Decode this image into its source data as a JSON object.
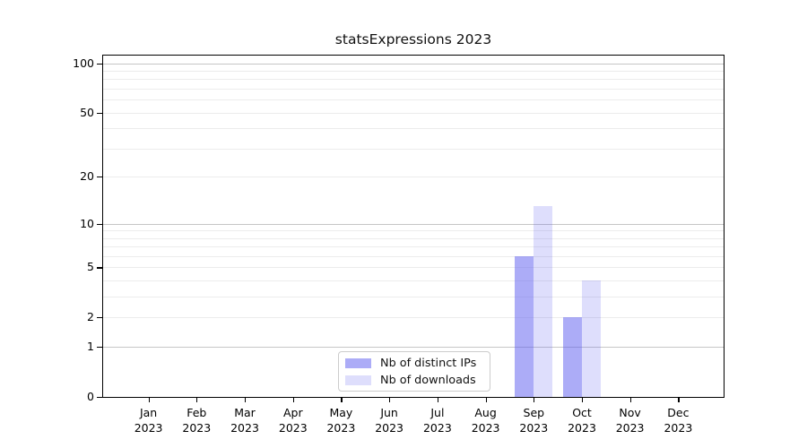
{
  "chart_data": {
    "type": "bar",
    "title": "statsExpressions 2023",
    "year_label": "2023",
    "categories": [
      "Jan",
      "Feb",
      "Mar",
      "Apr",
      "May",
      "Jun",
      "Jul",
      "Aug",
      "Sep",
      "Oct",
      "Nov",
      "Dec"
    ],
    "series": [
      {
        "name": "Nb of distinct IPs",
        "slug": "distinct-ips",
        "color": "rgba(90,90,240,0.50)",
        "color_hex_on_white": "#acacf8",
        "values": [
          0,
          0,
          0,
          0,
          0,
          0,
          0,
          0,
          6,
          2,
          0,
          0
        ]
      },
      {
        "name": "Nb of downloads",
        "slug": "downloads",
        "color": "rgba(90,90,240,0.20)",
        "color_hex_on_white": "#dedef8",
        "values": [
          0,
          0,
          0,
          0,
          0,
          0,
          0,
          0,
          13,
          4,
          0,
          0
        ]
      }
    ],
    "yscale": "log1p",
    "yticks": [
      0,
      1,
      2,
      5,
      10,
      20,
      50,
      100
    ],
    "ylim": [
      0,
      112
    ],
    "xlabel": "",
    "ylabel": "",
    "legend_position": "inside-bottom-center",
    "grid": {
      "minor_values": [
        2,
        3,
        4,
        5,
        6,
        7,
        8,
        9,
        20,
        30,
        40,
        50,
        60,
        70,
        80,
        90
      ],
      "major_values": [
        1,
        10,
        100
      ],
      "minor_color": "#ececec",
      "major_color": "#c6c6c6"
    },
    "axis_color": "#000000",
    "background_color": "#ffffff"
  }
}
